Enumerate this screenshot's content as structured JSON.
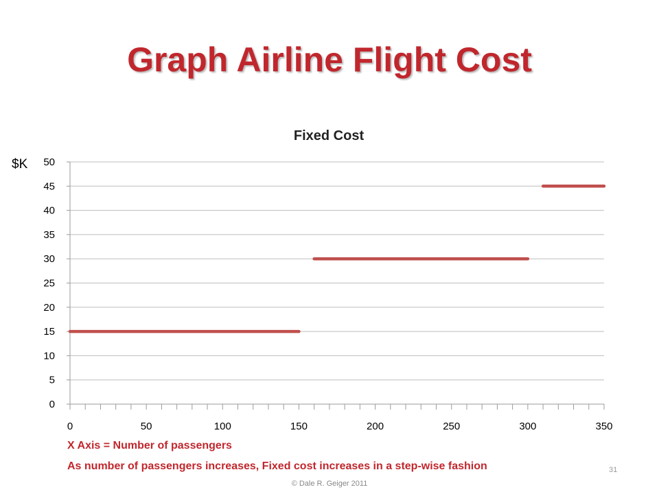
{
  "slide": {
    "title": "Graph Airline Flight Cost",
    "note_1": "X Axis = Number of passengers",
    "note_2": "As number of passengers increases, Fixed cost increases in a step-wise fashion",
    "slide_number": "31",
    "copyright": "© Dale R. Geiger 2011",
    "accent_color": "#c0272d"
  },
  "chart_data": {
    "type": "line",
    "title": "Fixed Cost",
    "ylabel": "$K",
    "xlabel": "",
    "xlim": [
      0,
      350
    ],
    "ylim": [
      0,
      50
    ],
    "x_ticks": [
      0,
      50,
      100,
      150,
      200,
      250,
      300,
      350
    ],
    "y_ticks": [
      0,
      5,
      10,
      15,
      20,
      25,
      30,
      35,
      40,
      45,
      50
    ],
    "grid": true,
    "legend": "none",
    "line_color": "#c0504d",
    "series": [
      {
        "segments": [
          {
            "x": [
              0,
              150
            ],
            "y": [
              15,
              15
            ]
          },
          {
            "x": [
              160,
              300
            ],
            "y": [
              30,
              30
            ]
          },
          {
            "x": [
              310,
              350
            ],
            "y": [
              45,
              45
            ]
          }
        ]
      }
    ]
  }
}
